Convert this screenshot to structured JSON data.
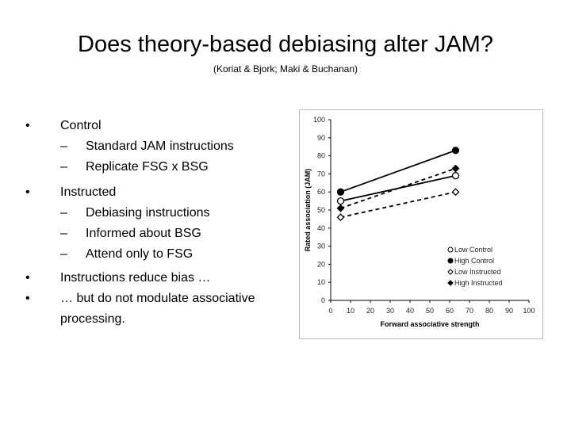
{
  "slide": {
    "title": "Does theory-based debiasing alter JAM?",
    "subtitle": "(Koriat & Bjork; Maki & Buchanan)",
    "bullets": [
      {
        "text": "Control",
        "subs": [
          "Standard JAM instructions",
          "Replicate FSG x BSG"
        ]
      },
      {
        "text": "Instructed",
        "subs": [
          "Debiasing instructions",
          "Informed about BSG",
          "Attend only to FSG"
        ]
      },
      {
        "text": "Instructions reduce bias …",
        "subs": []
      },
      {
        "text": "… but do not modulate associative processing.",
        "subs": []
      }
    ],
    "bullet_glyph": "•",
    "dash_glyph": "–"
  },
  "chart_data": {
    "type": "line",
    "xlabel": "Forward associative strength",
    "ylabel": "Rated association (JAM)",
    "xlim": [
      0,
      100
    ],
    "ylim": [
      0,
      100
    ],
    "xticks": [
      0,
      10,
      20,
      30,
      40,
      50,
      60,
      70,
      80,
      90,
      100
    ],
    "yticks": [
      0,
      10,
      20,
      30,
      40,
      50,
      60,
      70,
      80,
      90,
      100
    ],
    "grid": false,
    "legend_position": "bottom-right",
    "series": [
      {
        "name": "Low Control",
        "x": [
          5,
          63
        ],
        "y": [
          55,
          69
        ],
        "marker": "circle-open",
        "line": "solid"
      },
      {
        "name": "High Control",
        "x": [
          5,
          63
        ],
        "y": [
          60,
          83
        ],
        "marker": "circle-filled",
        "line": "solid"
      },
      {
        "name": "Low Instructed",
        "x": [
          5,
          63
        ],
        "y": [
          46,
          60
        ],
        "marker": "diamond-open",
        "line": "dashed"
      },
      {
        "name": "High Instructed",
        "x": [
          5,
          63
        ],
        "y": [
          51,
          73
        ],
        "marker": "diamond-filled",
        "line": "dashed"
      }
    ]
  }
}
